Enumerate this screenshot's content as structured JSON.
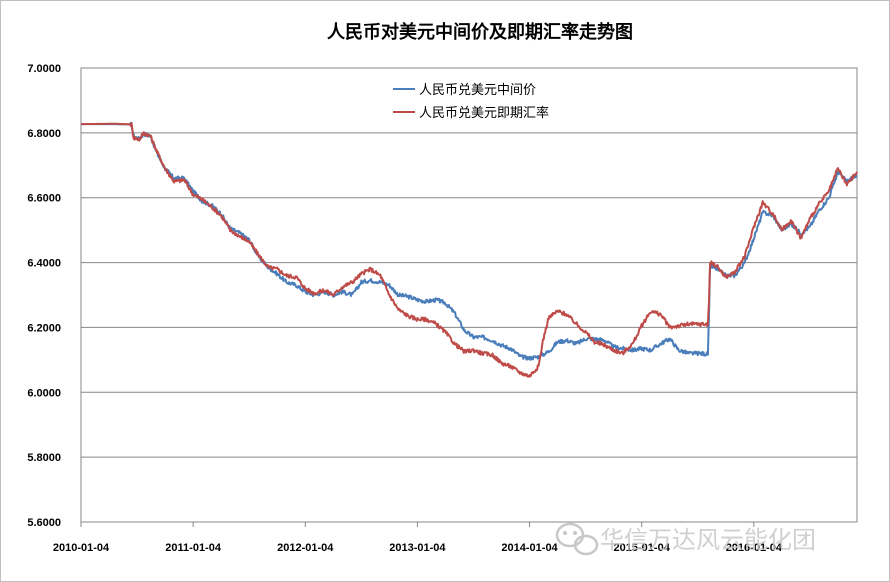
{
  "chart_data": {
    "type": "line",
    "title": "人民币对美元中间价及即期汇率走势图",
    "xlabel": "",
    "ylabel": "",
    "ylim": [
      5.6,
      7.0
    ],
    "y_ticks": [
      "7.0000",
      "6.8000",
      "6.6000",
      "6.4000",
      "6.2000",
      "6.0000",
      "5.8000",
      "5.6000"
    ],
    "x_ticks": [
      "2010-01-04",
      "2011-01-04",
      "2012-01-04",
      "2013-01-04",
      "2014-01-04",
      "2015-01-04",
      "2016-01-04"
    ],
    "x_range": [
      2010.0,
      2016.92
    ],
    "grid": "horizontal",
    "legend_position": "top-center",
    "series": [
      {
        "name": "人民币兑美元中间价",
        "color": "#4a7ebb",
        "points": [
          [
            2010.0,
            6.827
          ],
          [
            2010.3,
            6.827
          ],
          [
            2010.45,
            6.826
          ],
          [
            2010.47,
            6.79
          ],
          [
            2010.52,
            6.781
          ],
          [
            2010.56,
            6.797
          ],
          [
            2010.62,
            6.79
          ],
          [
            2010.68,
            6.735
          ],
          [
            2010.75,
            6.69
          ],
          [
            2010.83,
            6.66
          ],
          [
            2010.92,
            6.66
          ],
          [
            2011.0,
            6.62
          ],
          [
            2011.08,
            6.59
          ],
          [
            2011.17,
            6.575
          ],
          [
            2011.25,
            6.55
          ],
          [
            2011.33,
            6.505
          ],
          [
            2011.42,
            6.49
          ],
          [
            2011.5,
            6.47
          ],
          [
            2011.58,
            6.42
          ],
          [
            2011.67,
            6.385
          ],
          [
            2011.75,
            6.365
          ],
          [
            2011.83,
            6.34
          ],
          [
            2011.92,
            6.33
          ],
          [
            2012.0,
            6.31
          ],
          [
            2012.08,
            6.3
          ],
          [
            2012.17,
            6.31
          ],
          [
            2012.25,
            6.3
          ],
          [
            2012.33,
            6.31
          ],
          [
            2012.42,
            6.3
          ],
          [
            2012.5,
            6.34
          ],
          [
            2012.58,
            6.345
          ],
          [
            2012.67,
            6.34
          ],
          [
            2012.75,
            6.33
          ],
          [
            2012.83,
            6.3
          ],
          [
            2012.92,
            6.295
          ],
          [
            2013.0,
            6.285
          ],
          [
            2013.08,
            6.28
          ],
          [
            2013.17,
            6.285
          ],
          [
            2013.25,
            6.275
          ],
          [
            2013.33,
            6.245
          ],
          [
            2013.42,
            6.19
          ],
          [
            2013.5,
            6.17
          ],
          [
            2013.58,
            6.17
          ],
          [
            2013.67,
            6.16
          ],
          [
            2013.75,
            6.145
          ],
          [
            2013.83,
            6.135
          ],
          [
            2013.92,
            6.11
          ],
          [
            2014.0,
            6.105
          ],
          [
            2014.08,
            6.11
          ],
          [
            2014.17,
            6.125
          ],
          [
            2014.25,
            6.155
          ],
          [
            2014.33,
            6.16
          ],
          [
            2014.42,
            6.15
          ],
          [
            2014.5,
            6.165
          ],
          [
            2014.58,
            6.165
          ],
          [
            2014.67,
            6.16
          ],
          [
            2014.75,
            6.14
          ],
          [
            2014.83,
            6.135
          ],
          [
            2014.92,
            6.13
          ],
          [
            2015.0,
            6.135
          ],
          [
            2015.08,
            6.13
          ],
          [
            2015.17,
            6.15
          ],
          [
            2015.25,
            6.165
          ],
          [
            2015.33,
            6.13
          ],
          [
            2015.42,
            6.12
          ],
          [
            2015.5,
            6.12
          ],
          [
            2015.59,
            6.118
          ],
          [
            2015.6,
            6.23
          ],
          [
            2015.61,
            6.39
          ],
          [
            2015.67,
            6.38
          ],
          [
            2015.75,
            6.36
          ],
          [
            2015.83,
            6.36
          ],
          [
            2015.92,
            6.4
          ],
          [
            2016.0,
            6.475
          ],
          [
            2016.08,
            6.555
          ],
          [
            2016.17,
            6.545
          ],
          [
            2016.25,
            6.5
          ],
          [
            2016.33,
            6.52
          ],
          [
            2016.42,
            6.49
          ],
          [
            2016.5,
            6.51
          ],
          [
            2016.58,
            6.56
          ],
          [
            2016.67,
            6.6
          ],
          [
            2016.75,
            6.68
          ],
          [
            2016.83,
            6.65
          ],
          [
            2016.92,
            6.67
          ]
        ]
      },
      {
        "name": "人民币兑美元即期汇率",
        "color": "#be4b48",
        "points": [
          [
            2010.0,
            6.827
          ],
          [
            2010.3,
            6.828
          ],
          [
            2010.45,
            6.826
          ],
          [
            2010.47,
            6.785
          ],
          [
            2010.52,
            6.78
          ],
          [
            2010.56,
            6.8
          ],
          [
            2010.62,
            6.79
          ],
          [
            2010.68,
            6.74
          ],
          [
            2010.75,
            6.69
          ],
          [
            2010.83,
            6.65
          ],
          [
            2010.92,
            6.655
          ],
          [
            2011.0,
            6.61
          ],
          [
            2011.08,
            6.595
          ],
          [
            2011.17,
            6.57
          ],
          [
            2011.25,
            6.545
          ],
          [
            2011.33,
            6.5
          ],
          [
            2011.42,
            6.48
          ],
          [
            2011.5,
            6.465
          ],
          [
            2011.58,
            6.425
          ],
          [
            2011.67,
            6.385
          ],
          [
            2011.75,
            6.38
          ],
          [
            2011.83,
            6.36
          ],
          [
            2011.92,
            6.355
          ],
          [
            2012.0,
            6.32
          ],
          [
            2012.08,
            6.305
          ],
          [
            2012.17,
            6.315
          ],
          [
            2012.25,
            6.3
          ],
          [
            2012.33,
            6.325
          ],
          [
            2012.42,
            6.34
          ],
          [
            2012.5,
            6.365
          ],
          [
            2012.58,
            6.38
          ],
          [
            2012.67,
            6.36
          ],
          [
            2012.75,
            6.3
          ],
          [
            2012.83,
            6.255
          ],
          [
            2012.92,
            6.235
          ],
          [
            2013.0,
            6.225
          ],
          [
            2013.08,
            6.225
          ],
          [
            2013.17,
            6.21
          ],
          [
            2013.25,
            6.185
          ],
          [
            2013.33,
            6.15
          ],
          [
            2013.42,
            6.125
          ],
          [
            2013.5,
            6.13
          ],
          [
            2013.58,
            6.12
          ],
          [
            2013.67,
            6.115
          ],
          [
            2013.75,
            6.09
          ],
          [
            2013.83,
            6.08
          ],
          [
            2013.92,
            6.06
          ],
          [
            2014.0,
            6.05
          ],
          [
            2014.08,
            6.08
          ],
          [
            2014.12,
            6.16
          ],
          [
            2014.17,
            6.23
          ],
          [
            2014.25,
            6.25
          ],
          [
            2014.33,
            6.24
          ],
          [
            2014.42,
            6.21
          ],
          [
            2014.5,
            6.185
          ],
          [
            2014.58,
            6.155
          ],
          [
            2014.67,
            6.145
          ],
          [
            2014.75,
            6.13
          ],
          [
            2014.83,
            6.12
          ],
          [
            2014.92,
            6.15
          ],
          [
            2015.0,
            6.205
          ],
          [
            2015.08,
            6.25
          ],
          [
            2015.17,
            6.24
          ],
          [
            2015.25,
            6.2
          ],
          [
            2015.33,
            6.205
          ],
          [
            2015.42,
            6.21
          ],
          [
            2015.5,
            6.21
          ],
          [
            2015.59,
            6.21
          ],
          [
            2015.6,
            6.28
          ],
          [
            2015.61,
            6.4
          ],
          [
            2015.67,
            6.39
          ],
          [
            2015.75,
            6.355
          ],
          [
            2015.83,
            6.37
          ],
          [
            2015.92,
            6.42
          ],
          [
            2016.0,
            6.51
          ],
          [
            2016.08,
            6.585
          ],
          [
            2016.17,
            6.55
          ],
          [
            2016.25,
            6.5
          ],
          [
            2016.33,
            6.53
          ],
          [
            2016.42,
            6.475
          ],
          [
            2016.5,
            6.535
          ],
          [
            2016.58,
            6.58
          ],
          [
            2016.67,
            6.62
          ],
          [
            2016.75,
            6.69
          ],
          [
            2016.83,
            6.64
          ],
          [
            2016.92,
            6.68
          ]
        ]
      }
    ]
  },
  "watermark": "华信万达风云能化团"
}
